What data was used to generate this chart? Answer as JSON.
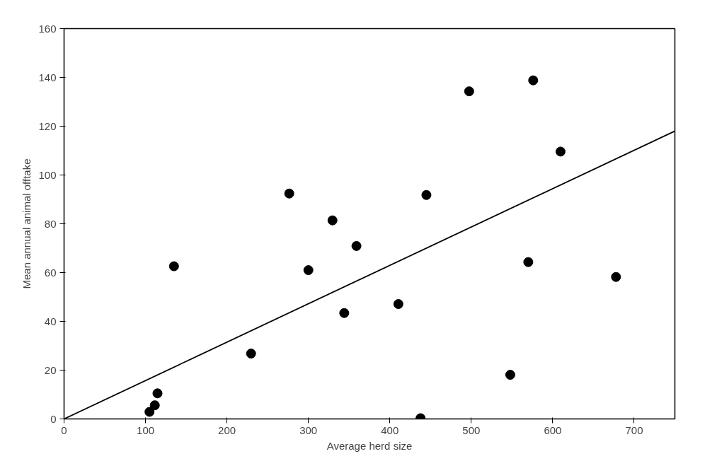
{
  "chart_data": {
    "type": "scatter",
    "xlabel": "Average herd size",
    "ylabel": "Mean annual animal offtake",
    "xlim": [
      0,
      750
    ],
    "ylim": [
      0,
      160
    ],
    "xticks": [
      0,
      100,
      200,
      300,
      400,
      500,
      600,
      700
    ],
    "yticks": [
      0,
      20,
      40,
      60,
      80,
      100,
      120,
      140,
      160
    ],
    "grid": false,
    "series": [
      {
        "marker": "circle",
        "color": "#000000",
        "x": [
          104.9,
          111.4,
          114.7,
          135,
          229.6,
          276.5,
          300,
          329.6,
          359,
          344,
          410.5,
          444.9,
          497.4,
          437.7,
          547.9,
          570,
          576,
          609.6,
          677.7
        ],
        "values": [
          2.9,
          5.6,
          10.5,
          62.6,
          26.8,
          92.4,
          61.0,
          81.4,
          70.9,
          43.4,
          47.1,
          91.8,
          134.3,
          0.3,
          18.1,
          64.3,
          138.8,
          109.6,
          58.2
        ]
      },
      {
        "type": "line",
        "marker": "none",
        "color": "#000000",
        "x": [
          0,
          750
        ],
        "values": [
          0,
          118
        ]
      }
    ]
  }
}
